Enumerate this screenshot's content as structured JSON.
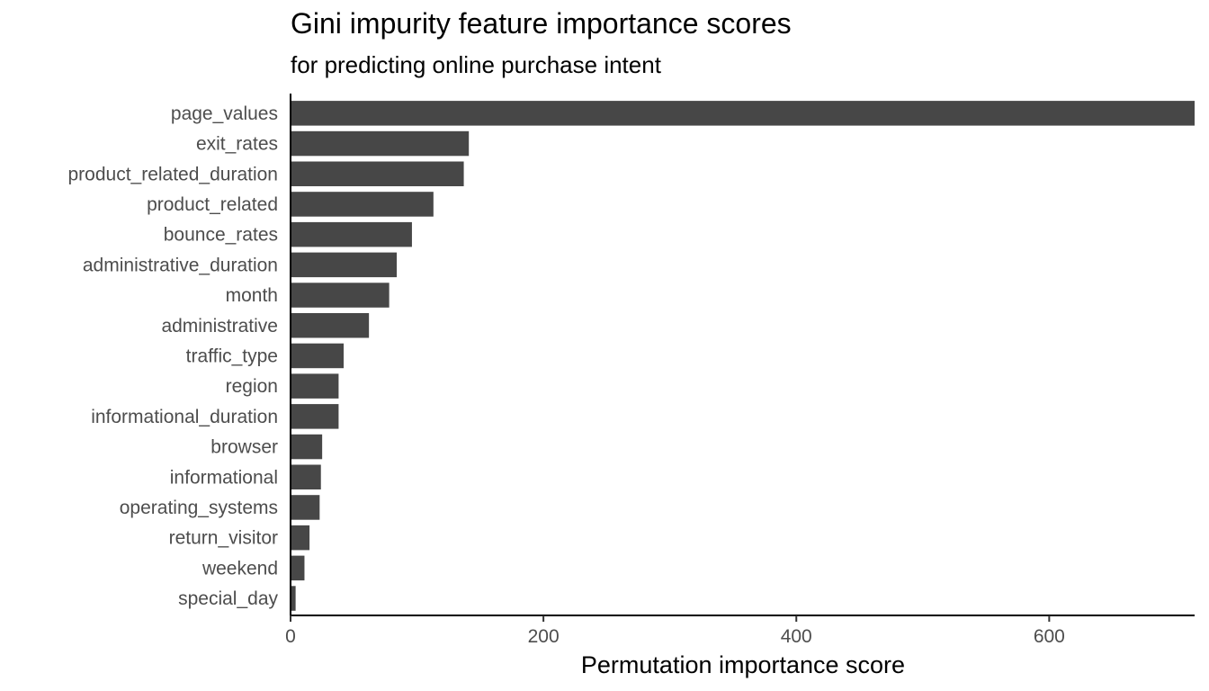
{
  "chart_data": {
    "type": "bar",
    "orientation": "horizontal",
    "title": "Gini impurity feature importance scores",
    "subtitle": "for predicting online purchase intent",
    "xlabel": "Permutation importance score",
    "ylabel": "",
    "xlim": [
      0,
      715
    ],
    "xticks": [
      0,
      200,
      400,
      600
    ],
    "grid": false,
    "legend": "none",
    "bar_color": "#474747",
    "categories": [
      "page_values",
      "exit_rates",
      "product_related_duration",
      "product_related",
      "bounce_rates",
      "administrative_duration",
      "month",
      "administrative",
      "traffic_type",
      "region",
      "informational_duration",
      "browser",
      "informational",
      "operating_systems",
      "return_visitor",
      "weekend",
      "special_day"
    ],
    "values": [
      715,
      141,
      137,
      113,
      96,
      84,
      78,
      62,
      42,
      38,
      38,
      25,
      24,
      23,
      15,
      11,
      4
    ]
  }
}
